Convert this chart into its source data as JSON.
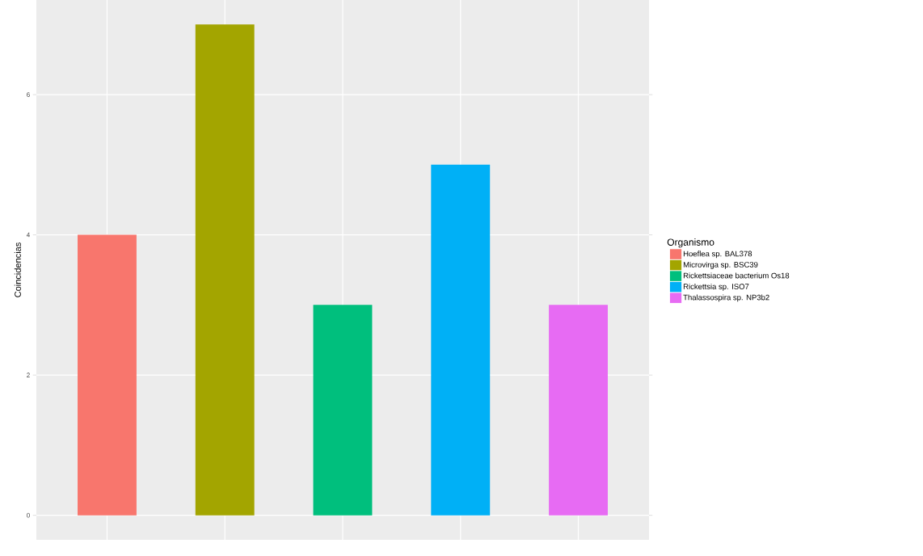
{
  "chart_data": {
    "type": "bar",
    "ylabel": "Coincidencias",
    "legend_title": "Organismo",
    "categories": [
      null,
      null,
      null,
      null,
      null
    ],
    "series": [
      {
        "name": "Hoeflea sp. BAL378",
        "color": "#f8766d",
        "values": [
          4,
          null,
          null,
          null,
          null
        ]
      },
      {
        "name": "Microvirga sp. BSC39",
        "color": "#a3a500",
        "values": [
          null,
          7,
          null,
          null,
          null
        ]
      },
      {
        "name": "Rickettsiaceae bacterium Os18",
        "color": "#00bf7d",
        "values": [
          null,
          null,
          3,
          null,
          null
        ]
      },
      {
        "name": "Rickettsia sp. ISO7",
        "color": "#00b0f6",
        "values": [
          null,
          null,
          null,
          5,
          null
        ]
      },
      {
        "name": "Thalassospira sp. NP3b2",
        "color": "#e76bf3",
        "values": [
          null,
          null,
          null,
          null,
          3
        ]
      }
    ],
    "ylim": [
      -0.35,
      7.35
    ],
    "yticks": [
      0,
      2,
      4,
      6
    ],
    "grid": true,
    "legend": "right",
    "tick_labels": "y"
  }
}
